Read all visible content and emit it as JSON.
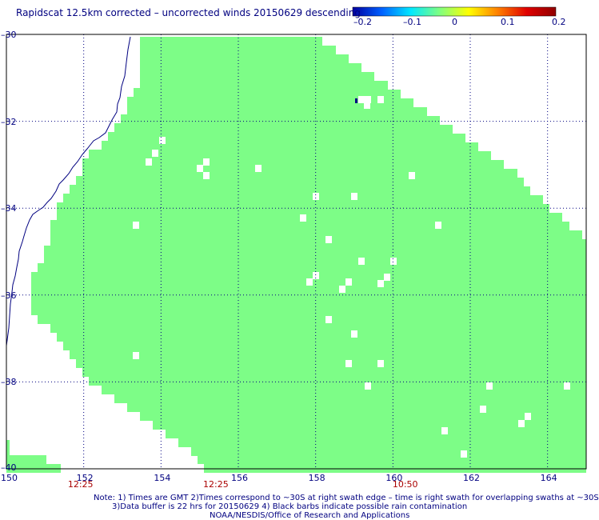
{
  "title": "Rapidscat 12.5km corrected – uncorrected winds 20150629 descending",
  "colorbar": {
    "ticks": [
      "–0.2",
      "–0.1",
      "0",
      "0.1",
      "0.2"
    ],
    "range": [
      -0.2,
      0.2
    ],
    "stops": [
      "#0000a0",
      "#0060ff",
      "#00e8ff",
      "#80ff80",
      "#ffff00",
      "#ff8000",
      "#e00000",
      "#900000"
    ]
  },
  "chart_data": {
    "type": "map",
    "xlim": [
      150,
      165
    ],
    "ylim": [
      -40,
      -30
    ],
    "lon_ticks": [
      "150",
      "152",
      "154",
      "156",
      "158",
      "160",
      "162",
      "164"
    ],
    "lat_ticks": [
      "–30",
      "–32",
      "–34",
      "–36",
      "–38",
      "–40"
    ],
    "fill_color": "#7dfd87",
    "value_displayed": 0,
    "time_labels": [
      {
        "text": "12:25",
        "lon": 151.9
      },
      {
        "text": "12:25",
        "lon": 155.4
      },
      {
        "text": "10:50",
        "lon": 160.3
      }
    ]
  },
  "notes": [
    "Note: 1) Times are GMT 2)Times correspond to ~30S at right swath edge – time is right swath for overlapping swaths at ~30S",
    "3)Data buffer is 22 hrs for 20150629 4) Black barbs indicate possible rain contamination",
    "NOAA/NESDIS/Office of Research and Applications"
  ]
}
